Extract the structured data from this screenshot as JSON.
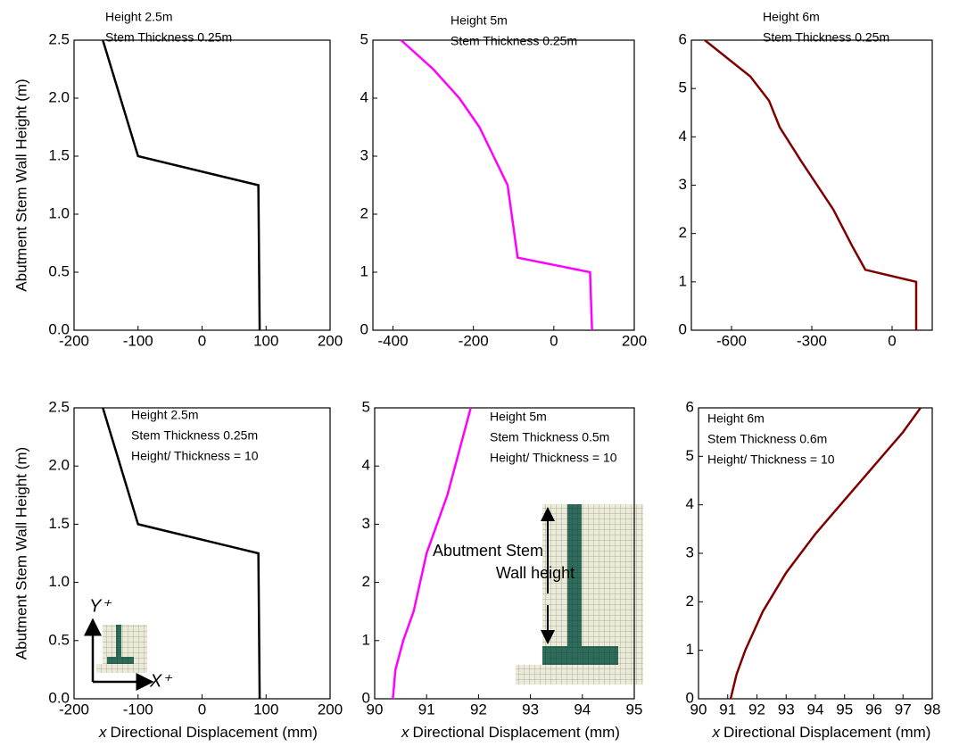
{
  "chart_data": [
    {
      "type": "line",
      "annotation": [
        "Height 2.5m",
        "Stem Thickness 0.25m"
      ],
      "ylabel": "Abutment Stem Wall Height (m)",
      "color": "#000000",
      "x": [
        -155,
        -100,
        88,
        90
      ],
      "values": [
        2.5,
        1.5,
        1.25,
        0
      ],
      "xlim": [
        -200,
        200
      ],
      "ylim": [
        0,
        2.5
      ],
      "xticks": [
        -200,
        -100,
        0,
        100,
        200
      ],
      "yticks": [
        {
          "value": 0,
          "label": "0.0"
        },
        0.5,
        {
          "value": 1,
          "label": "1.0"
        },
        1.5,
        {
          "value": 2,
          "label": "2.0"
        },
        2.5
      ]
    },
    {
      "type": "line",
      "annotation": [
        "Height 5m",
        "Stem Thickness 0.25m"
      ],
      "color": "#ff00ff",
      "x": [
        -380,
        -300,
        -235,
        -185,
        -150,
        -115,
        -90,
        90,
        95
      ],
      "values": [
        5,
        4.5,
        4,
        3.5,
        3,
        2.5,
        1.25,
        1,
        0
      ],
      "xlim": [
        -450,
        200
      ],
      "ylim": [
        0,
        5
      ],
      "xticks": [
        -400,
        -200,
        0,
        200
      ],
      "yticks": [
        0,
        1,
        2,
        3,
        4,
        5
      ]
    },
    {
      "type": "line",
      "annotation": [
        "Height 6m",
        "Stem Thickness 0.25m"
      ],
      "color": "#800000",
      "x": [
        -700,
        -530,
        -460,
        -420,
        -340,
        -220,
        -150,
        -100,
        90,
        90
      ],
      "values": [
        6,
        5.25,
        4.75,
        4.2,
        3.5,
        2.5,
        1.75,
        1.25,
        1,
        0
      ],
      "xlim": [
        -750,
        150
      ],
      "ylim": [
        0,
        6
      ],
      "xticks": [
        -600,
        -300,
        0
      ],
      "yticks": [
        0,
        1,
        2,
        3,
        4,
        5,
        6
      ]
    },
    {
      "type": "line",
      "annotation": [
        "Height 2.5m",
        "Stem Thickness 0.25m",
        "Height/ Thickness = 10"
      ],
      "ylabel": "Abutment Stem Wall Height (m)",
      "xlabel_var": "x",
      "xlabel": "Directional Displacement (mm)",
      "color": "#000000",
      "inset_labels": [
        "Y⁺",
        "X⁺"
      ],
      "x": [
        -155,
        -100,
        88,
        90
      ],
      "values": [
        2.5,
        1.5,
        1.25,
        0
      ],
      "xlim": [
        -200,
        200
      ],
      "ylim": [
        0,
        2.5
      ],
      "xticks": [
        -200,
        -100,
        0,
        100,
        200
      ],
      "yticks": [
        {
          "value": 0,
          "label": "0.0"
        },
        0.5,
        {
          "value": 1,
          "label": "1.0"
        },
        1.5,
        {
          "value": 2,
          "label": "2.0"
        },
        2.5
      ]
    },
    {
      "type": "line",
      "annotation": [
        "Height 5m",
        "Stem Thickness 0.5m",
        "Height/ Thickness = 10"
      ],
      "xlabel_var": "x",
      "xlabel": "Directional Displacement (mm)",
      "color": "#ff00ff",
      "callout": [
        "Abutment Stem",
        "Wall height"
      ],
      "x": [
        90.35,
        90.4,
        90.55,
        90.75,
        91,
        91.4,
        91.85
      ],
      "values": [
        0,
        0.5,
        1,
        1.5,
        2.5,
        3.5,
        5
      ],
      "xlim": [
        90,
        95
      ],
      "ylim": [
        0,
        5
      ],
      "xticks": [
        90,
        91,
        92,
        93,
        94,
        95
      ],
      "yticks": [
        0,
        1,
        2,
        3,
        4,
        5
      ]
    },
    {
      "type": "line",
      "annotation": [
        "Height 6m",
        "Stem Thickness 0.6m",
        "Height/ Thickness = 10"
      ],
      "xlabel_var": "x",
      "xlabel": "Directional Displacement (mm)",
      "color": "#800000",
      "x": [
        91.1,
        91.3,
        91.6,
        92.2,
        93,
        94,
        95,
        96,
        97,
        97.6
      ],
      "values": [
        0,
        0.5,
        1,
        1.8,
        2.6,
        3.4,
        4.1,
        4.8,
        5.5,
        6
      ],
      "xlim": [
        90,
        98
      ],
      "ylim": [
        0,
        6
      ],
      "xticks": [
        90,
        91,
        92,
        93,
        94,
        95,
        96,
        97,
        98
      ],
      "yticks": [
        0,
        1,
        2,
        3,
        4,
        5,
        6
      ]
    }
  ]
}
